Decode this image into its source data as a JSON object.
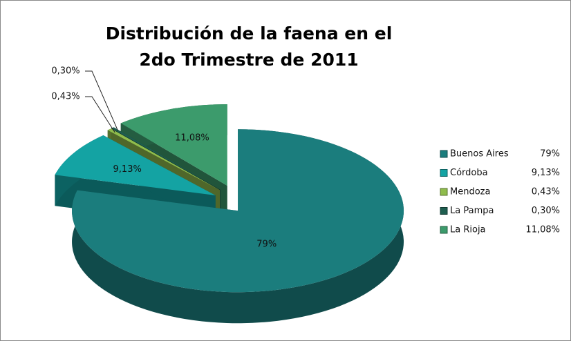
{
  "chart_data": {
    "type": "pie3d",
    "title": "Distribución de la faena en el 2do Trimestre de 2011",
    "categories": [
      "Buenos Aires",
      "Córdoba",
      "Mendoza",
      "La Pampa",
      "La Rioja"
    ],
    "values": [
      79,
      9.13,
      0.43,
      0.3,
      11.08
    ],
    "value_labels": [
      "79%",
      "9,13%",
      "0,43%",
      "0,30%",
      "11,08%"
    ],
    "colors": [
      "#1b7d7d",
      "#14a3a3",
      "#8fbc4c",
      "#1e5e50",
      "#3c9b6c"
    ],
    "legend": "right"
  }
}
